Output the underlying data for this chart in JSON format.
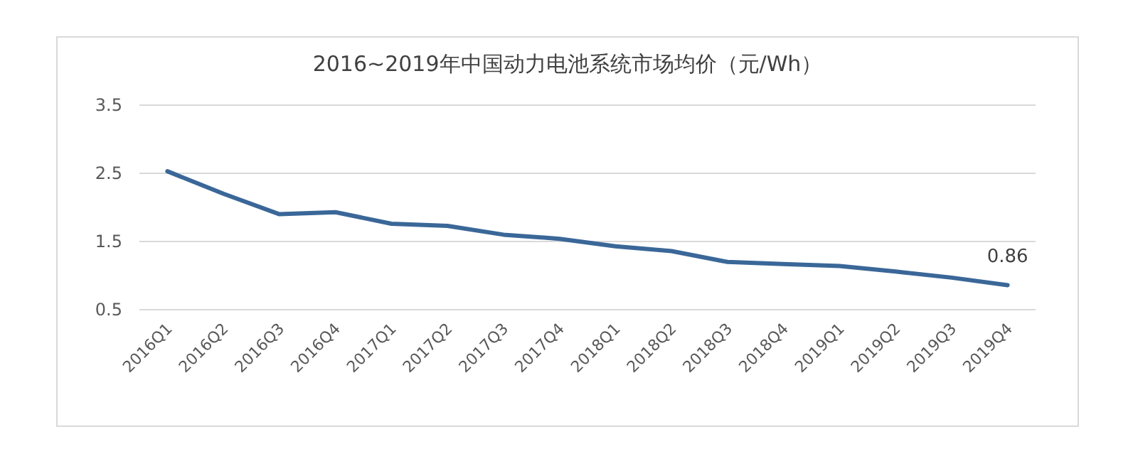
{
  "chart_data": {
    "type": "line",
    "title": "2016~2019年中国动力电池系统市场均价（元/Wh）",
    "categories": [
      "2016Q1",
      "2016Q2",
      "2016Q3",
      "2016Q4",
      "2017Q1",
      "2017Q2",
      "2017Q3",
      "2017Q4",
      "2018Q1",
      "2018Q2",
      "2018Q3",
      "2018Q4",
      "2019Q1",
      "2019Q2",
      "2019Q3",
      "2019Q4"
    ],
    "series": [
      {
        "color": "#3a6798",
        "values": [
          2.53,
          2.2,
          1.9,
          1.93,
          1.76,
          1.73,
          1.6,
          1.54,
          1.43,
          1.36,
          1.2,
          1.17,
          1.14,
          1.06,
          0.97,
          0.86
        ],
        "value_labels": [
          null,
          null,
          null,
          null,
          null,
          null,
          null,
          null,
          null,
          null,
          null,
          null,
          null,
          null,
          null,
          "0.86"
        ]
      }
    ],
    "ylim": [
      0.5,
      3.5
    ],
    "yticks": [
      0.5,
      1.5,
      2.5,
      3.5
    ],
    "grid": "y"
  }
}
